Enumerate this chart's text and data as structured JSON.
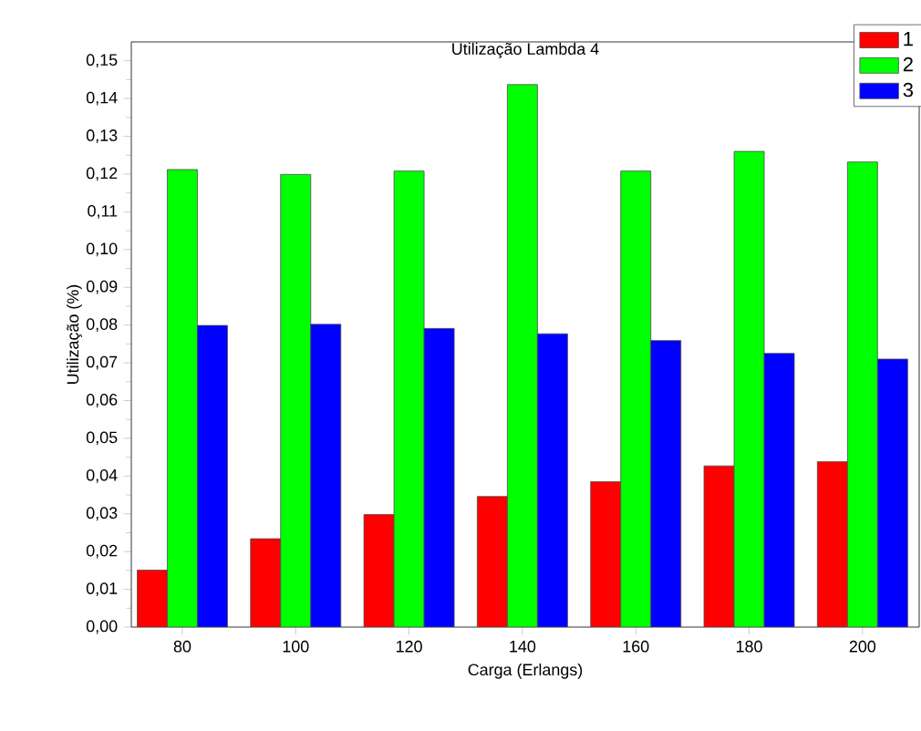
{
  "chart_data": {
    "type": "bar",
    "title": "Utilização Lambda 4",
    "xlabel": "Carga (Erlangs)",
    "ylabel": "Utilização (%)",
    "categories": [
      "80",
      "100",
      "120",
      "140",
      "160",
      "180",
      "200"
    ],
    "series": [
      {
        "name": "1",
        "color": "#ff0000",
        "values": [
          0.0151,
          0.0234,
          0.0298,
          0.0346,
          0.0385,
          0.0427,
          0.0438
        ]
      },
      {
        "name": "2",
        "color": "#00ff00",
        "values": [
          0.1212,
          0.1199,
          0.1208,
          0.1437,
          0.1208,
          0.126,
          0.1232
        ]
      },
      {
        "name": "3",
        "color": "#0000ff",
        "values": [
          0.0799,
          0.0802,
          0.0791,
          0.0777,
          0.0759,
          0.0725,
          0.071
        ]
      }
    ],
    "ylim": [
      0,
      0.155
    ],
    "yticks": [
      {
        "value": 0,
        "label": "0,00"
      },
      {
        "value": 0.01,
        "label": "0,01"
      },
      {
        "value": 0.02,
        "label": "0,02"
      },
      {
        "value": 0.03,
        "label": "0,03"
      },
      {
        "value": 0.04,
        "label": "0,04"
      },
      {
        "value": 0.05,
        "label": "0,05"
      },
      {
        "value": 0.06,
        "label": "0,06"
      },
      {
        "value": 0.07,
        "label": "0,07"
      },
      {
        "value": 0.08,
        "label": "0,08"
      },
      {
        "value": 0.09,
        "label": "0,09"
      },
      {
        "value": 0.1,
        "label": "0,10"
      },
      {
        "value": 0.11,
        "label": "0,11"
      },
      {
        "value": 0.12,
        "label": "0,12"
      },
      {
        "value": 0.13,
        "label": "0,13"
      },
      {
        "value": 0.14,
        "label": "0,14"
      },
      {
        "value": 0.15,
        "label": "0,15"
      }
    ],
    "legend": "top right",
    "grid": false
  }
}
